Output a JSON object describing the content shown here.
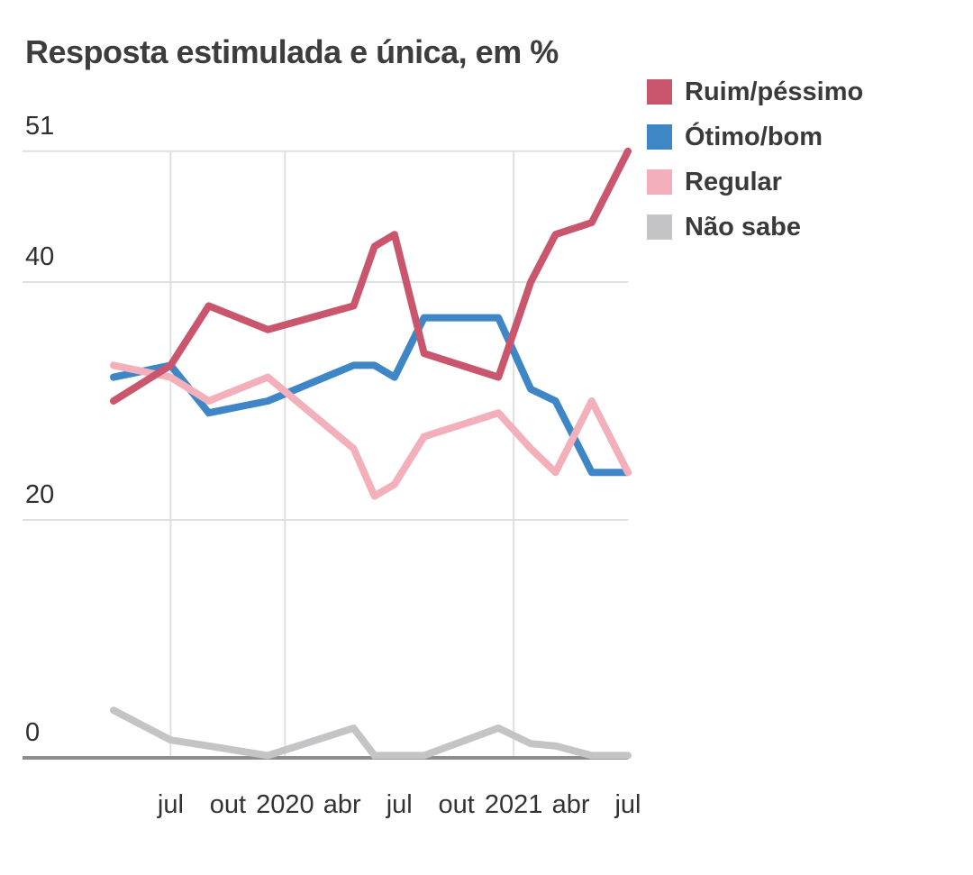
{
  "title": "Resposta estimulada e única, em %",
  "colors": {
    "background": "#ffffff",
    "title_text": "#3d3d3d",
    "tick_text": "#333333",
    "legend_text": "#3a3a3a",
    "gridline": "#e0e0e0",
    "axis_line": "#8e8e8e",
    "ruim_pessimo": "#ca566d",
    "otimo_bom": "#3e86c6",
    "regular": "#f3b0ba",
    "nao_sabe": "#c4c4c6"
  },
  "chart_data": {
    "type": "line",
    "title": "Resposta estimulada e única, em %",
    "xlabel": "",
    "ylabel": "",
    "ylim": [
      0,
      51
    ],
    "grid": true,
    "legend_position": "top-right",
    "point_dates": [
      "abr 2019",
      "jul 2019",
      "set 2019",
      "dez 2019",
      "abr 2020",
      "mai 2020",
      "jun 2020",
      "ago 2020",
      "dez 2020",
      "jan 2021",
      "mar 2021",
      "mai 2021",
      "jul 2021"
    ],
    "points_months_from_abr2019": [
      0,
      3,
      5,
      8.1,
      12.6,
      13.7,
      14.75,
      16.3,
      20.2,
      21.9,
      23.2,
      25.1,
      27
    ],
    "series": [
      {
        "name": "Ruim/péssimo",
        "color": "#ca566d",
        "values": [
          30,
          33,
          38,
          36,
          38,
          43,
          44,
          34,
          32,
          40,
          44,
          45,
          51
        ]
      },
      {
        "name": "Ótimo/bom",
        "color": "#3e86c6",
        "values": [
          32,
          33,
          29,
          30,
          33,
          33,
          32,
          37,
          37,
          31,
          30,
          24,
          24
        ]
      },
      {
        "name": "Regular",
        "color": "#f3b0ba",
        "values": [
          33,
          32,
          30,
          32,
          26,
          22,
          23,
          27,
          29,
          26,
          24,
          30,
          24
        ]
      },
      {
        "name": "Não sabe",
        "color": "#c4c4c6",
        "values": [
          4,
          1.5,
          1,
          0.2,
          2.5,
          0.2,
          0.2,
          0.2,
          2.5,
          1.2,
          1,
          0.2,
          0.2
        ]
      }
    ],
    "y_ticks": [
      51,
      40,
      20,
      0
    ],
    "x_ticks": [
      {
        "label": "jul",
        "m": 3
      },
      {
        "label": "out",
        "m": 6
      },
      {
        "label": "2020",
        "m": 9
      },
      {
        "label": "abr",
        "m": 12
      },
      {
        "label": "jul",
        "m": 15
      },
      {
        "label": "out",
        "m": 18
      },
      {
        "label": "2021",
        "m": 21
      },
      {
        "label": "abr",
        "m": 24
      },
      {
        "label": "jul",
        "m": 27
      }
    ],
    "grid_x_months": [
      3,
      9,
      21
    ],
    "grid_y_values": [
      51,
      40,
      20
    ]
  }
}
